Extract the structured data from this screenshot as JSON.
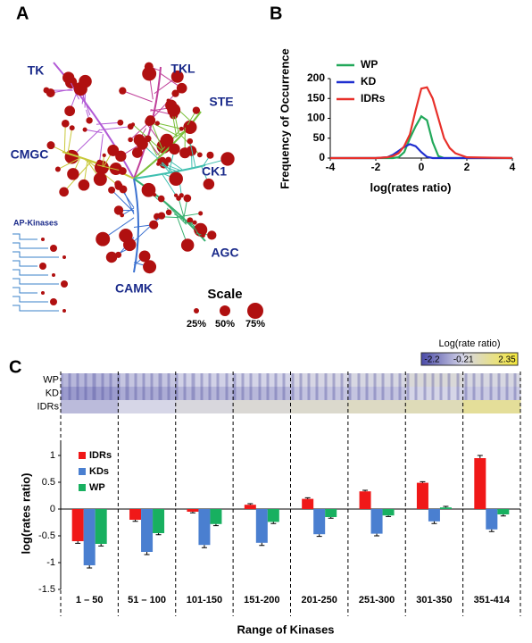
{
  "panels": [
    "A",
    "B",
    "C"
  ],
  "kinome_tree": {
    "groups": [
      "TK",
      "TKL",
      "STE",
      "CMGC",
      "CK1",
      "AGC",
      "CAMK"
    ],
    "inset_title": "AP-Kinases",
    "scale_title": "Scale",
    "scale_labels": [
      "25%",
      "50%",
      "75%"
    ]
  },
  "chart_data": [
    {
      "type": "line",
      "xlabel": "log(rates ratio)",
      "ylabel": "Frequency of Occurrence",
      "x": [
        -4,
        -2,
        -1.5,
        -1.25,
        -1,
        -0.75,
        -0.5,
        -0.25,
        0,
        0.25,
        0.5,
        0.75,
        1,
        1.25,
        1.5,
        2,
        4
      ],
      "xlim": [
        -4,
        4
      ],
      "xticks": [
        -4,
        -2,
        0,
        2,
        4
      ],
      "ylim": [
        0,
        200
      ],
      "yticks": [
        0,
        50,
        100,
        150,
        200
      ],
      "series": [
        {
          "name": "WP",
          "color": "#22a85a",
          "values": [
            0,
            0,
            0,
            0,
            2,
            15,
            50,
            80,
            105,
            95,
            40,
            5,
            0,
            0,
            0,
            0,
            0
          ]
        },
        {
          "name": "KD",
          "color": "#1f2fd0",
          "values": [
            0,
            0,
            2,
            8,
            18,
            28,
            35,
            30,
            15,
            3,
            0,
            0,
            0,
            0,
            0,
            0,
            0
          ]
        },
        {
          "name": "IDRs",
          "color": "#e8302a",
          "values": [
            0,
            0,
            2,
            5,
            12,
            30,
            60,
            120,
            175,
            178,
            150,
            100,
            50,
            25,
            12,
            2,
            0
          ]
        }
      ]
    },
    {
      "type": "heatmap",
      "rows": [
        "WP",
        "KD",
        "IDRs"
      ],
      "values": [
        [
          -0.65,
          -0.45,
          -0.28,
          -0.24,
          -0.15,
          -0.12,
          0.03,
          -0.1
        ],
        [
          -1.05,
          -0.8,
          -0.67,
          -0.63,
          -0.47,
          -0.46,
          -0.23,
          -0.38
        ],
        [
          -0.6,
          -0.2,
          -0.05,
          0.08,
          0.19,
          0.33,
          0.49,
          0.95
        ]
      ],
      "colorbar": {
        "label": "Log(rate ratio)",
        "lim": [
          -2.2,
          2.35
        ],
        "ticks": [
          -2.2,
          -0.21,
          2.35
        ],
        "colors": [
          "#4a4aa8",
          "#d6d6e8",
          "#f5e83a"
        ]
      }
    },
    {
      "type": "bar",
      "xlabel": "Range of Kinases",
      "ylabel": "log(rates ratio)",
      "categories": [
        "1 – 50",
        "51 – 100",
        "101-150",
        "151-200",
        "201-250",
        "251-300",
        "301-350",
        "351-414"
      ],
      "ylim": [
        -1.5,
        1.25
      ],
      "yticks": [
        -1.5,
        -1,
        -0.5,
        0,
        0.5,
        1
      ],
      "series": [
        {
          "name": "IDRs",
          "color": "#f01818",
          "values": [
            -0.6,
            -0.2,
            -0.05,
            0.08,
            0.19,
            0.33,
            0.49,
            0.95
          ],
          "errors": [
            0.04,
            0.03,
            0.02,
            0.02,
            0.02,
            0.02,
            0.02,
            0.05
          ]
        },
        {
          "name": "KDs",
          "color": "#4a7fd0",
          "values": [
            -1.05,
            -0.8,
            -0.67,
            -0.63,
            -0.47,
            -0.46,
            -0.23,
            -0.38
          ],
          "errors": [
            0.05,
            0.05,
            0.05,
            0.05,
            0.04,
            0.04,
            0.04,
            0.04
          ]
        },
        {
          "name": "WP",
          "color": "#18b060",
          "values": [
            -0.65,
            -0.45,
            -0.28,
            -0.24,
            -0.15,
            -0.12,
            0.03,
            -0.1
          ],
          "errors": [
            0.04,
            0.03,
            0.03,
            0.03,
            0.02,
            0.02,
            0.02,
            0.03
          ]
        }
      ]
    }
  ]
}
